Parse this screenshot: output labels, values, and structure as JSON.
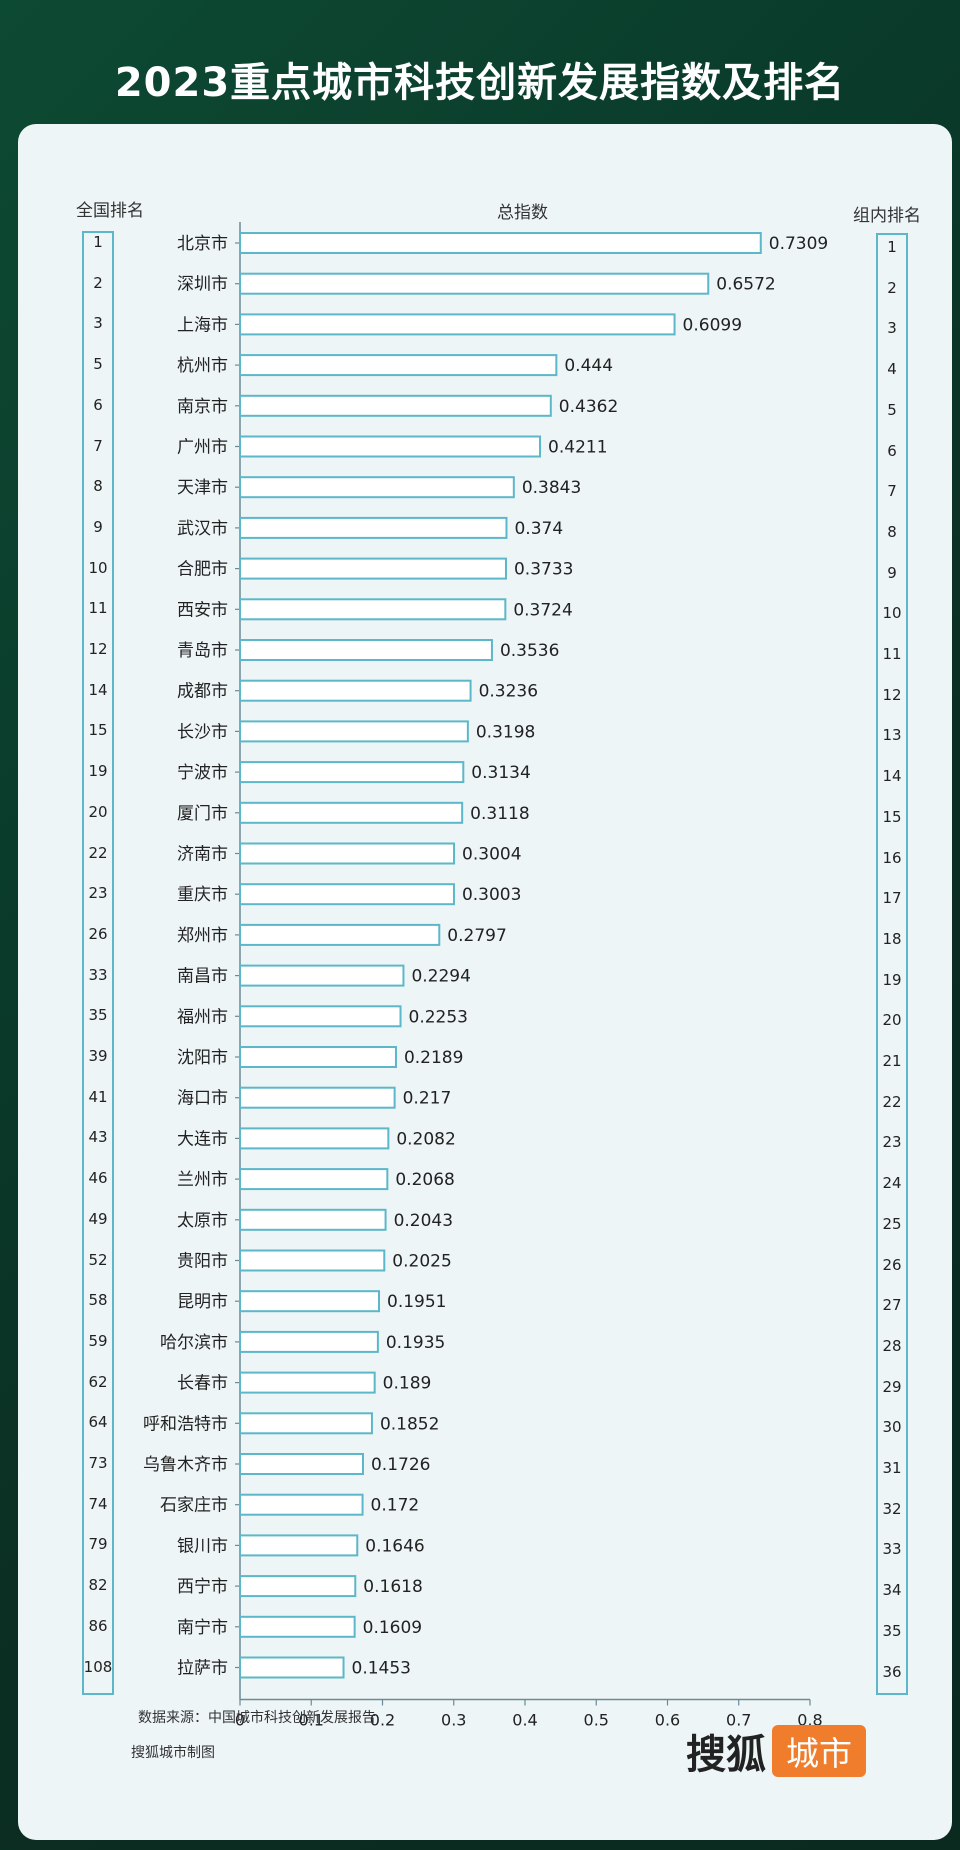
{
  "title": "2023重点城市科技创新发展指数及排名",
  "headers": {
    "national_rank": "全国排名",
    "total_index": "总指数",
    "group_rank": "组内排名"
  },
  "footer": {
    "source": "数据来源：中国城市科技创新发展报告",
    "credit": "搜狐城市制图",
    "logo_main": "搜狐",
    "logo_tag": "城市"
  },
  "colors": {
    "bar_stroke": "#5bb7c9",
    "bar_fill": "#ffffff",
    "logo_accent": "#f07d2c"
  },
  "chart_data": {
    "type": "bar",
    "orientation": "horizontal",
    "xlim": [
      0,
      0.8
    ],
    "x_ticks": [
      "0",
      "0.1",
      "0.2",
      "0.3",
      "0.4",
      "0.5",
      "0.6",
      "0.7",
      "0.8"
    ],
    "categories": [
      "北京市",
      "深圳市",
      "上海市",
      "杭州市",
      "南京市",
      "广州市",
      "天津市",
      "武汉市",
      "合肥市",
      "西安市",
      "青岛市",
      "成都市",
      "长沙市",
      "宁波市",
      "厦门市",
      "济南市",
      "重庆市",
      "郑州市",
      "南昌市",
      "福州市",
      "沈阳市",
      "海口市",
      "大连市",
      "兰州市",
      "太原市",
      "贵阳市",
      "昆明市",
      "哈尔滨市",
      "长春市",
      "呼和浩特市",
      "乌鲁木齐市",
      "石家庄市",
      "银川市",
      "西宁市",
      "南宁市",
      "拉萨市"
    ],
    "values": [
      0.7309,
      0.6572,
      0.6099,
      0.444,
      0.4362,
      0.4211,
      0.3843,
      0.374,
      0.3733,
      0.3724,
      0.3536,
      0.3236,
      0.3198,
      0.3134,
      0.3118,
      0.3004,
      0.3003,
      0.2797,
      0.2294,
      0.2253,
      0.2189,
      0.217,
      0.2082,
      0.2068,
      0.2043,
      0.2025,
      0.1951,
      0.1935,
      0.189,
      0.1852,
      0.1726,
      0.172,
      0.1646,
      0.1618,
      0.1609,
      0.1453
    ],
    "value_labels": [
      "0.7309",
      "0.6572",
      "0.6099",
      "0.444",
      "0.4362",
      "0.4211",
      "0.3843",
      "0.374",
      "0.3733",
      "0.3724",
      "0.3536",
      "0.3236",
      "0.3198",
      "0.3134",
      "0.3118",
      "0.3004",
      "0.3003",
      "0.2797",
      "0.2294",
      "0.2253",
      "0.2189",
      "0.217",
      "0.2082",
      "0.2068",
      "0.2043",
      "0.2025",
      "0.1951",
      "0.1935",
      "0.189",
      "0.1852",
      "0.1726",
      "0.172",
      "0.1646",
      "0.1618",
      "0.1609",
      "0.1453"
    ],
    "national_rank": [
      "1",
      "2",
      "3",
      "5",
      "6",
      "7",
      "8",
      "9",
      "10",
      "11",
      "12",
      "14",
      "15",
      "19",
      "20",
      "22",
      "23",
      "26",
      "33",
      "35",
      "39",
      "41",
      "43",
      "46",
      "49",
      "52",
      "58",
      "59",
      "62",
      "64",
      "73",
      "74",
      "79",
      "82",
      "86",
      "108"
    ],
    "group_rank": [
      "1",
      "2",
      "3",
      "4",
      "5",
      "6",
      "7",
      "8",
      "9",
      "10",
      "11",
      "12",
      "13",
      "14",
      "15",
      "16",
      "17",
      "18",
      "19",
      "20",
      "21",
      "22",
      "23",
      "24",
      "25",
      "26",
      "27",
      "28",
      "29",
      "30",
      "31",
      "32",
      "33",
      "34",
      "35",
      "36"
    ]
  }
}
